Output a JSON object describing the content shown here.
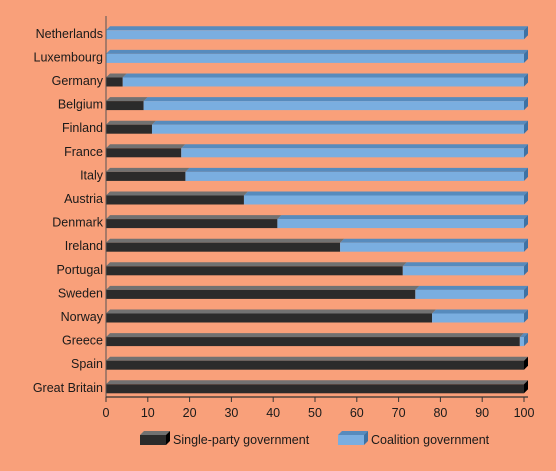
{
  "chart_data": {
    "type": "bar",
    "orientation": "horizontal",
    "stacked": true,
    "categories": [
      "Netherlands",
      "Luxembourg",
      "Germany",
      "Belgium",
      "Finland",
      "France",
      "Italy",
      "Austria",
      "Denmark",
      "Ireland",
      "Portugal",
      "Sweden",
      "Norway",
      "Greece",
      "Spain",
      "Great Britain"
    ],
    "series": [
      {
        "name": "Single-party government",
        "color": "#2b2b2b",
        "values": [
          0,
          0,
          4,
          9,
          11,
          18,
          19,
          33,
          41,
          56,
          71,
          74,
          78,
          99,
          100,
          100
        ]
      },
      {
        "name": "Coalition government",
        "color": "#7aaee0",
        "values": [
          100,
          100,
          96,
          91,
          89,
          82,
          81,
          67,
          59,
          44,
          29,
          26,
          22,
          1,
          0,
          0
        ]
      }
    ],
    "xlim": [
      0,
      100
    ],
    "xticks": [
      0,
      10,
      20,
      30,
      40,
      50,
      60,
      70,
      80,
      90,
      100
    ],
    "legend_position": "bottom",
    "background": "#F9A07A",
    "grid": false
  }
}
